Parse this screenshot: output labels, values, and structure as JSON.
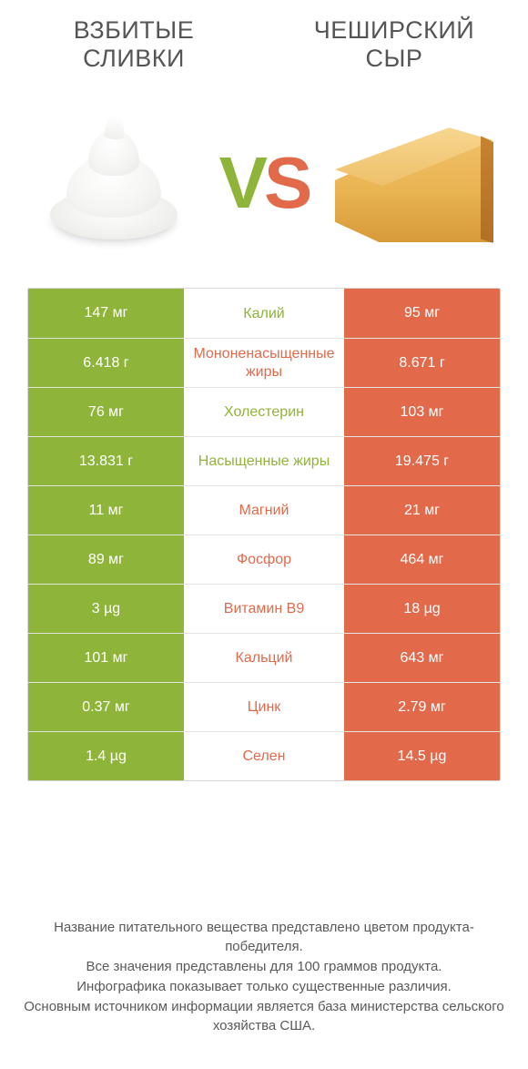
{
  "type": "infographic-comparison-table",
  "background_color": "#ffffff",
  "left": {
    "title": "ВЗБИТЫЕ СЛИВКИ",
    "color": "#8fb43a",
    "title_color": "#555555",
    "title_fontsize": 27
  },
  "right": {
    "title": "ЧЕШИРСКИЙ СЫР",
    "color": "#e26a4b",
    "title_color": "#555555",
    "title_fontsize": 27
  },
  "vs": {
    "v": "V",
    "s": "S",
    "fontsize": 80
  },
  "table": {
    "border_color": "#d8d8d8",
    "row_border_color": "#e3e3e3",
    "cell_text_color": "#ffffff",
    "mid_bg": "#ffffff",
    "value_fontsize": 16,
    "label_fontsize": 16,
    "rows": [
      {
        "left": "147 мг",
        "label": "Калий",
        "right": "95 мг",
        "winner": "left"
      },
      {
        "left": "6.418 г",
        "label": "Мононенасыщенные жиры",
        "right": "8.671 г",
        "winner": "right"
      },
      {
        "left": "76 мг",
        "label": "Холестерин",
        "right": "103 мг",
        "winner": "left"
      },
      {
        "left": "13.831 г",
        "label": "Насыщенные жиры",
        "right": "19.475 г",
        "winner": "left"
      },
      {
        "left": "11 мг",
        "label": "Магний",
        "right": "21 мг",
        "winner": "right"
      },
      {
        "left": "89 мг",
        "label": "Фосфор",
        "right": "464 мг",
        "winner": "right"
      },
      {
        "left": "3 µg",
        "label": "Витамин B9",
        "right": "18 µg",
        "winner": "right"
      },
      {
        "left": "101 мг",
        "label": "Кальций",
        "right": "643 мг",
        "winner": "right"
      },
      {
        "left": "0.37 мг",
        "label": "Цинк",
        "right": "2.79 мг",
        "winner": "right"
      },
      {
        "left": "1.4 µg",
        "label": "Селен",
        "right": "14.5 µg",
        "winner": "right"
      }
    ]
  },
  "footer": {
    "lines": [
      "Название питательного вещества представлено цветом продукта-победителя.",
      "Все значения представлены для 100 граммов продукта.",
      "Инфографика показывает только существенные различия.",
      "Основным источником информации является база министерства сельского хозяйства США."
    ],
    "fontsize": 15,
    "color": "#5a5a5a"
  }
}
